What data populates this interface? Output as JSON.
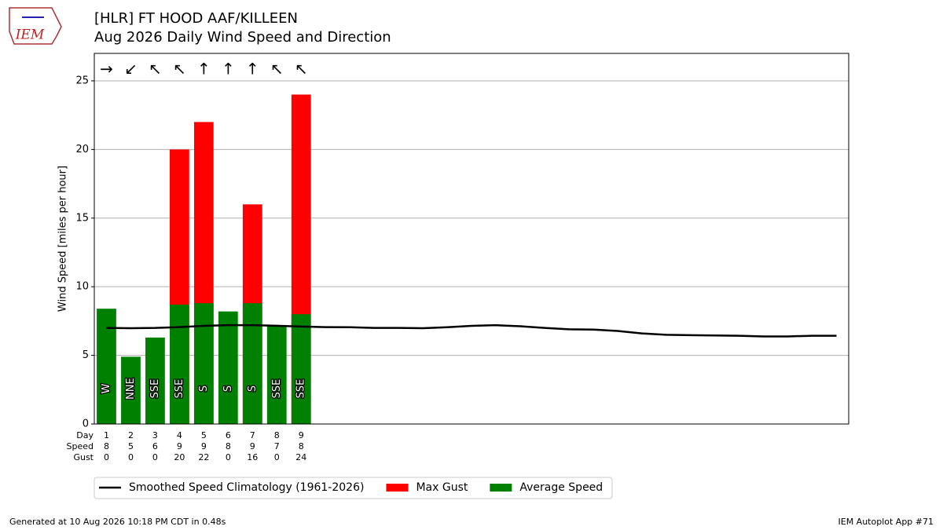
{
  "logo_text": "IEM",
  "footer": {
    "left": "Generated at 10 Aug 2026 10:18 PM CDT in 0.48s",
    "right": "IEM Autoplot App #71"
  },
  "chart_data": {
    "type": "bar",
    "title": "[HLR] FT HOOD AAF/KILLEEN",
    "subtitle": "Aug 2026 Daily Wind Speed and Direction",
    "ylabel": "Wind Speed [miles per hour]",
    "xlim": [
      0.5,
      31.5
    ],
    "ylim": [
      0,
      27
    ],
    "yticks": [
      0,
      5,
      10,
      15,
      20,
      25
    ],
    "grid": true,
    "x": [
      1,
      2,
      3,
      4,
      5,
      6,
      7,
      8,
      9
    ],
    "row_labels": [
      "Day",
      "Speed",
      "Gust"
    ],
    "directions": [
      "W",
      "NNE",
      "SSE",
      "SSE",
      "S",
      "S",
      "S",
      "SSE",
      "SSE"
    ],
    "arrows": [
      "→",
      "↙",
      "↖",
      "↖",
      "↑",
      "↑",
      "↑",
      "↖",
      "↖"
    ],
    "series": [
      {
        "name": "Smoothed Speed Climatology (1961-2026)",
        "type": "line",
        "color": "#000000",
        "x": [
          1,
          2,
          3,
          4,
          5,
          6,
          7,
          8,
          9,
          10,
          11,
          12,
          13,
          14,
          15,
          16,
          17,
          18,
          19,
          20,
          21,
          22,
          23,
          24,
          25,
          26,
          27,
          28,
          29,
          30,
          31
        ],
        "values": [
          7.0,
          6.98,
          7.0,
          7.06,
          7.15,
          7.2,
          7.2,
          7.16,
          7.1,
          7.06,
          7.05,
          7.0,
          7.0,
          6.98,
          7.05,
          7.15,
          7.2,
          7.12,
          7.0,
          6.9,
          6.88,
          6.78,
          6.6,
          6.5,
          6.47,
          6.45,
          6.43,
          6.38,
          6.38,
          6.43,
          6.43
        ]
      },
      {
        "name": "Max Gust",
        "type": "bar",
        "color": "#ff0000",
        "values": [
          0,
          0,
          0,
          20,
          22,
          0,
          16,
          0,
          24
        ]
      },
      {
        "name": "Average Speed",
        "type": "bar",
        "color": "#008000",
        "values": [
          8.4,
          4.9,
          6.3,
          8.7,
          8.8,
          8.2,
          8.8,
          7.2,
          8.0
        ],
        "value_labels": [
          "8",
          "5",
          "6",
          "9",
          "9",
          "8",
          "9",
          "7",
          "8"
        ]
      }
    ]
  }
}
